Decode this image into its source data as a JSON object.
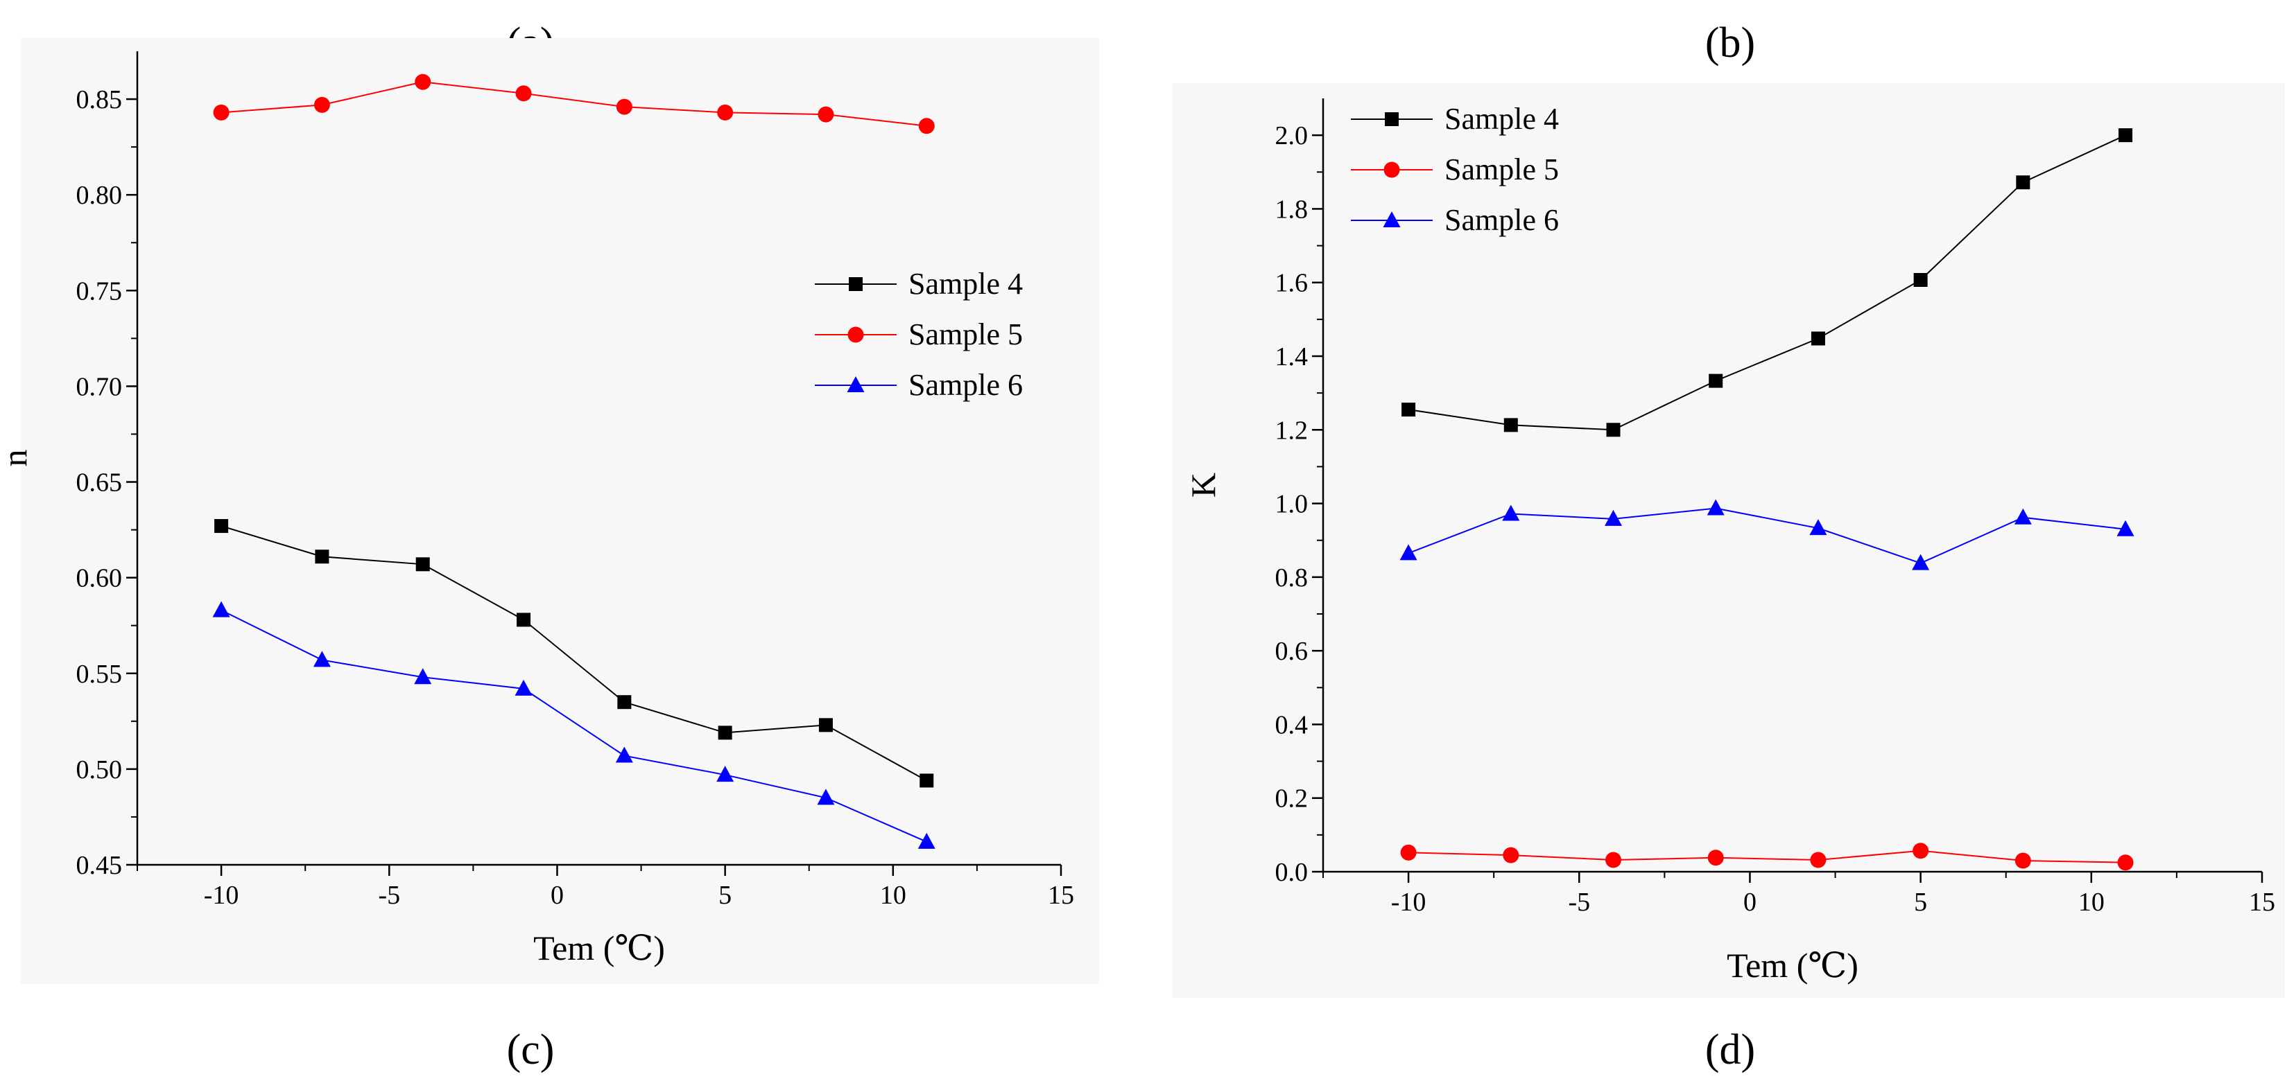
{
  "figure": {
    "panel_labels": [
      "(a)",
      "(b)",
      "(c)",
      "(d)"
    ],
    "colors": {
      "sample4": "#000000",
      "sample5": "#ff0000",
      "sample6": "#0000ff",
      "plot_background": "#f7f7f7"
    }
  },
  "chart_data": [
    {
      "type": "line",
      "panel": "c",
      "title": "",
      "xlabel": "Tem (℃)",
      "ylabel": "n",
      "xlim": [
        -12.5,
        15
      ],
      "ylim": [
        0.45,
        0.875
      ],
      "x_ticks": [
        -10,
        -5,
        0,
        5,
        10,
        15
      ],
      "x_tick_labels": [
        "-10",
        "-5",
        "0",
        "5",
        "10",
        "15"
      ],
      "y_ticks": [
        0.45,
        0.5,
        0.55,
        0.6,
        0.65,
        0.7,
        0.75,
        0.8,
        0.85
      ],
      "y_tick_labels": [
        "0.45",
        "0.50",
        "0.55",
        "0.60",
        "0.65",
        "0.70",
        "0.75",
        "0.80",
        "0.85"
      ],
      "grid": false,
      "legend_position": "middle-right",
      "x": [
        -10,
        -7,
        -4,
        -1,
        2,
        5,
        8,
        11
      ],
      "series": [
        {
          "name": "Sample 4",
          "color": "#000000",
          "marker": "square",
          "values": [
            0.627,
            0.611,
            0.607,
            0.578,
            0.535,
            0.519,
            0.523,
            0.494
          ]
        },
        {
          "name": "Sample 5",
          "color": "#ff0000",
          "marker": "circle",
          "values": [
            0.843,
            0.847,
            0.859,
            0.853,
            0.846,
            0.843,
            0.842,
            0.836
          ]
        },
        {
          "name": "Sample 6",
          "color": "#0000ff",
          "marker": "triangle",
          "values": [
            0.583,
            0.557,
            0.548,
            0.542,
            0.507,
            0.497,
            0.485,
            0.462
          ]
        }
      ]
    },
    {
      "type": "line",
      "panel": "d",
      "title": "",
      "xlabel": "Tem (℃)",
      "ylabel": "K",
      "xlim": [
        -12.5,
        15
      ],
      "ylim": [
        0,
        2.1
      ],
      "x_ticks": [
        -10,
        -5,
        0,
        5,
        10,
        15
      ],
      "x_tick_labels": [
        "-10",
        "-5",
        "0",
        "5",
        "10",
        "15"
      ],
      "y_ticks": [
        0,
        0.2,
        0.4,
        0.6,
        0.8,
        1.0,
        1.2,
        1.4,
        1.6,
        1.8,
        2.0
      ],
      "y_tick_labels": [
        "0.0",
        "0.2",
        "0.4",
        "0.6",
        "0.8",
        "1.0",
        "1.2",
        "1.4",
        "1.6",
        "1.8",
        "2.0"
      ],
      "grid": false,
      "legend_position": "top-left",
      "x": [
        -10,
        -7,
        -4,
        -1,
        2,
        5,
        8,
        11
      ],
      "series": [
        {
          "name": "Sample 4",
          "color": "#000000",
          "marker": "square",
          "values": [
            1.255,
            1.213,
            1.2,
            1.333,
            1.448,
            1.607,
            1.872,
            2.0
          ]
        },
        {
          "name": "Sample 5",
          "color": "#ff0000",
          "marker": "circle",
          "values": [
            0.052,
            0.045,
            0.032,
            0.038,
            0.032,
            0.057,
            0.03,
            0.025
          ]
        },
        {
          "name": "Sample 6",
          "color": "#0000ff",
          "marker": "triangle",
          "values": [
            0.865,
            0.972,
            0.958,
            0.987,
            0.933,
            0.838,
            0.962,
            0.93
          ]
        }
      ]
    }
  ]
}
